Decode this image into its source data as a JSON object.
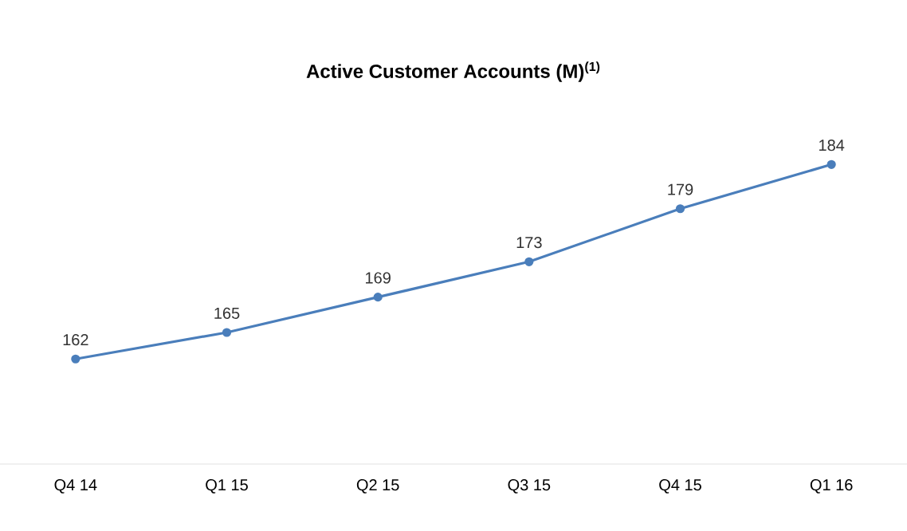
{
  "chart_data": {
    "type": "line",
    "title": "Active Customer Accounts (M)$^{(1)}$",
    "categories": [
      "Q4 14",
      "Q1 15",
      "Q2 15",
      "Q3 15",
      "Q4 15",
      "Q1 16"
    ],
    "values": [
      162,
      165,
      169,
      173,
      179,
      184
    ],
    "color": "#4a7ebb",
    "marker": "circle",
    "line_style": "solid",
    "data_labels": true
  }
}
